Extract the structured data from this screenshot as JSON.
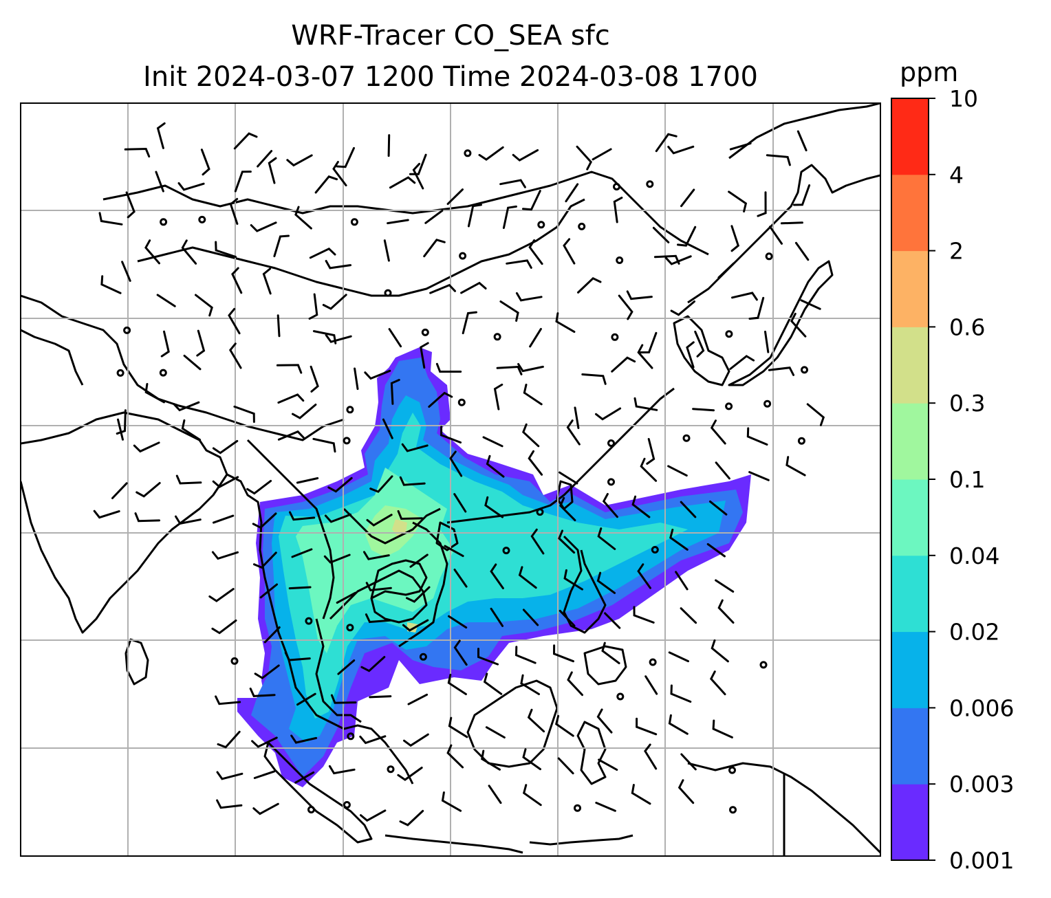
{
  "title": {
    "line1": "WRF-Tracer CO_SEA sfc",
    "line2": "Init 2024-03-07 1200 Time 2024-03-08 1700"
  },
  "colorbar": {
    "units": "ppm",
    "levels": [
      "0.001",
      "0.003",
      "0.006",
      "0.02",
      "0.04",
      "0.1",
      "0.3",
      "0.6",
      "2",
      "4",
      "10"
    ],
    "colors": [
      "#6a2bff",
      "#3376f2",
      "#07b2ea",
      "#2edfd4",
      "#6cf7c0",
      "#a0f79e",
      "#d2e08a",
      "#fdb264",
      "#ff743b",
      "#ff2a16"
    ]
  },
  "map": {
    "coastline_color": "#000000",
    "gridline_color": "#b0b0b0",
    "grid_rows": 6,
    "grid_cols": 7
  }
}
